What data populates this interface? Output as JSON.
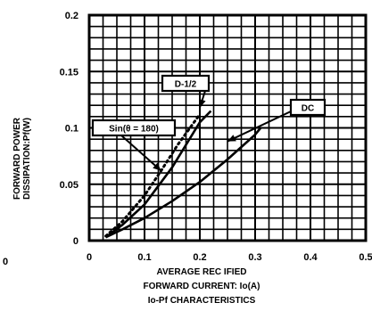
{
  "chart_data": {
    "type": "line",
    "title": "",
    "xlabel_lines": [
      "AVERAGE REC  IFIED",
      "FORWARD CURRENT: Io(A)",
      "Io-Pf CHARACTERISTICS"
    ],
    "ylabel_lines": [
      "FORWARD POWER",
      "DISSIPATION:Pf(W)"
    ],
    "xlim": [
      0,
      0.5
    ],
    "ylim": [
      0,
      0.2
    ],
    "x_ticks": [
      "0",
      "0.1",
      "0.2",
      "0.3",
      "0.4",
      "0.5"
    ],
    "y_ticks": [
      "0",
      "0.05",
      "0.1",
      "0.15",
      "0.2"
    ],
    "y_tick_labels": [
      "0",
      "0.05",
      "0.1",
      "0.15",
      "0.2"
    ],
    "x_tick_labels": [
      "0",
      "0.1",
      "0.2",
      "0.3",
      "0.4",
      "0.5"
    ],
    "grid": true,
    "stray_label": "0",
    "series": [
      {
        "name": "DC",
        "style": "solid",
        "x": [
          0.03,
          0.06,
          0.1,
          0.15,
          0.2,
          0.25,
          0.3,
          0.31
        ],
        "y": [
          0.003,
          0.01,
          0.02,
          0.035,
          0.052,
          0.072,
          0.094,
          0.1
        ]
      },
      {
        "name": "D-1/2",
        "style": "solid",
        "x": [
          0.03,
          0.06,
          0.1,
          0.15,
          0.2,
          0.22
        ],
        "y": [
          0.003,
          0.014,
          0.032,
          0.065,
          0.105,
          0.115
        ]
      },
      {
        "name": "Sin(θ = 180)",
        "style": "dotted",
        "x": [
          0.03,
          0.06,
          0.1,
          0.13,
          0.16,
          0.2
        ],
        "y": [
          0.004,
          0.017,
          0.04,
          0.062,
          0.085,
          0.112
        ]
      }
    ],
    "annotations": [
      {
        "label": "D-1/2",
        "target_series": "D-1/2"
      },
      {
        "label": "DC",
        "target_series": "DC"
      },
      {
        "label": "Sin(θ = 180)",
        "target_series": "Sin(θ = 180)"
      }
    ]
  }
}
